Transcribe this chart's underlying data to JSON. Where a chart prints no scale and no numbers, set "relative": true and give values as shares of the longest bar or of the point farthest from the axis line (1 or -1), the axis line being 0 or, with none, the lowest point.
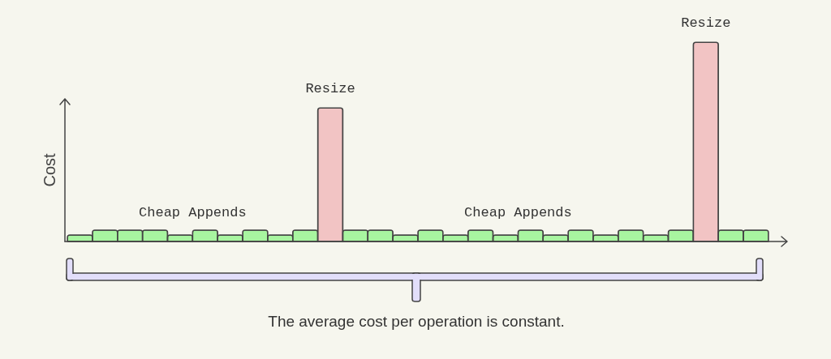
{
  "chart_data": {
    "type": "bar",
    "relative": true,
    "ylabel": "Cost",
    "categories": [
      null,
      null,
      null,
      null,
      null,
      null,
      null,
      null,
      null,
      null,
      null,
      null,
      null,
      null,
      null,
      null,
      null,
      null,
      null,
      null,
      null,
      null,
      null,
      null,
      null,
      null,
      null,
      null
    ],
    "values": [
      0.033,
      0.057,
      0.057,
      0.057,
      0.033,
      0.057,
      0.033,
      0.057,
      0.033,
      0.057,
      0.67,
      0.057,
      0.057,
      0.033,
      0.057,
      0.033,
      0.057,
      0.033,
      0.057,
      0.033,
      0.057,
      0.033,
      0.057,
      0.033,
      0.057,
      1,
      0.057,
      0.057
    ],
    "colors": [
      "#a8f5a0",
      "#a8f5a0",
      "#a8f5a0",
      "#a8f5a0",
      "#a8f5a0",
      "#a8f5a0",
      "#a8f5a0",
      "#a8f5a0",
      "#a8f5a0",
      "#a8f5a0",
      "#f2c4c4",
      "#a8f5a0",
      "#a8f5a0",
      "#a8f5a0",
      "#a8f5a0",
      "#a8f5a0",
      "#a8f5a0",
      "#a8f5a0",
      "#a8f5a0",
      "#a8f5a0",
      "#a8f5a0",
      "#a8f5a0",
      "#a8f5a0",
      "#a8f5a0",
      "#a8f5a0",
      "#f2c4c4",
      "#a8f5a0",
      "#a8f5a0"
    ],
    "annotations": [
      {
        "text": "Resize",
        "y": 0.67
      },
      {
        "text": "Resize",
        "y": 1
      },
      "Cheap Appends",
      "Cheap Appends",
      "The average cost per operation is constant."
    ]
  }
}
